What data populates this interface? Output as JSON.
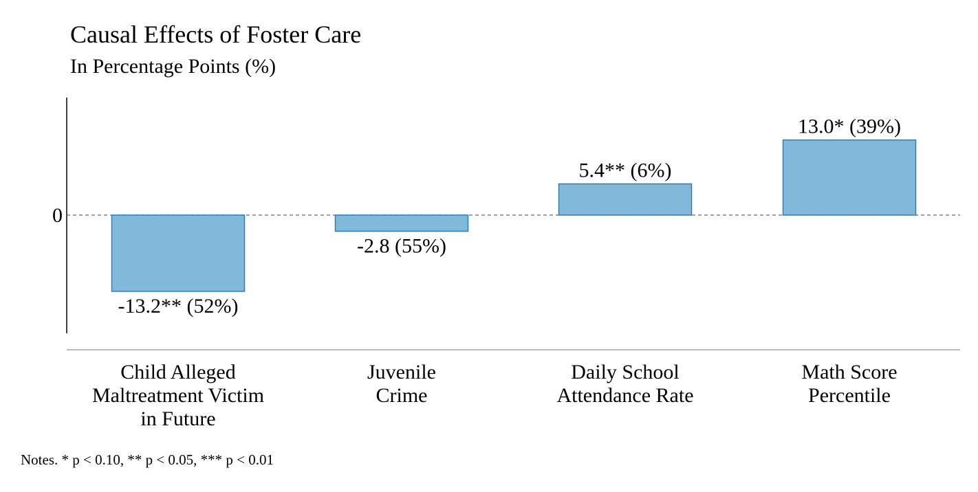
{
  "chart_data": {
    "type": "bar",
    "title": "Causal Effects of Foster Care",
    "subtitle": "In Percentage Points (%)",
    "categories": [
      [
        "Child Alleged",
        "Maltreatment Victim",
        "in Future"
      ],
      [
        "Juvenile",
        "Crime"
      ],
      [
        "Daily School",
        "Attendance Rate"
      ],
      [
        "Math Score",
        "Percentile"
      ]
    ],
    "values": [
      -13.2,
      -2.8,
      5.4,
      13.0
    ],
    "data_labels": [
      "-13.2** (52%)",
      "-2.8 (55%)",
      "5.4** (6%)",
      "13.0* (39%)"
    ],
    "y_ticks": [
      {
        "value": 0,
        "label": "0"
      }
    ],
    "ylim": [
      -20,
      20
    ],
    "grid": false,
    "zero_line": "dashed",
    "legend": "none",
    "colors": {
      "bar_fill": "#82b8da",
      "bar_stroke": "#2b7fb4",
      "zero_line": "#666666",
      "axis": "#000000",
      "baseline": "#bbbbbb"
    },
    "note": "Notes. * p < 0.10, ** p < 0.05, *** p < 0.01"
  }
}
